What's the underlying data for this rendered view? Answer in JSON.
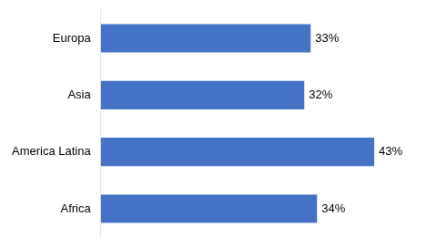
{
  "chart_data": {
    "type": "bar",
    "orientation": "horizontal",
    "categories": [
      "Africa",
      "America Latina",
      "Asia",
      "Europa"
    ],
    "values": [
      34,
      43,
      32,
      33
    ],
    "value_labels": [
      "34%",
      "43%",
      "32%",
      "33%"
    ],
    "data_labels": true,
    "color": "#4472C4",
    "xlim": [
      0,
      50
    ],
    "grid": false,
    "tick_labels": "y"
  }
}
